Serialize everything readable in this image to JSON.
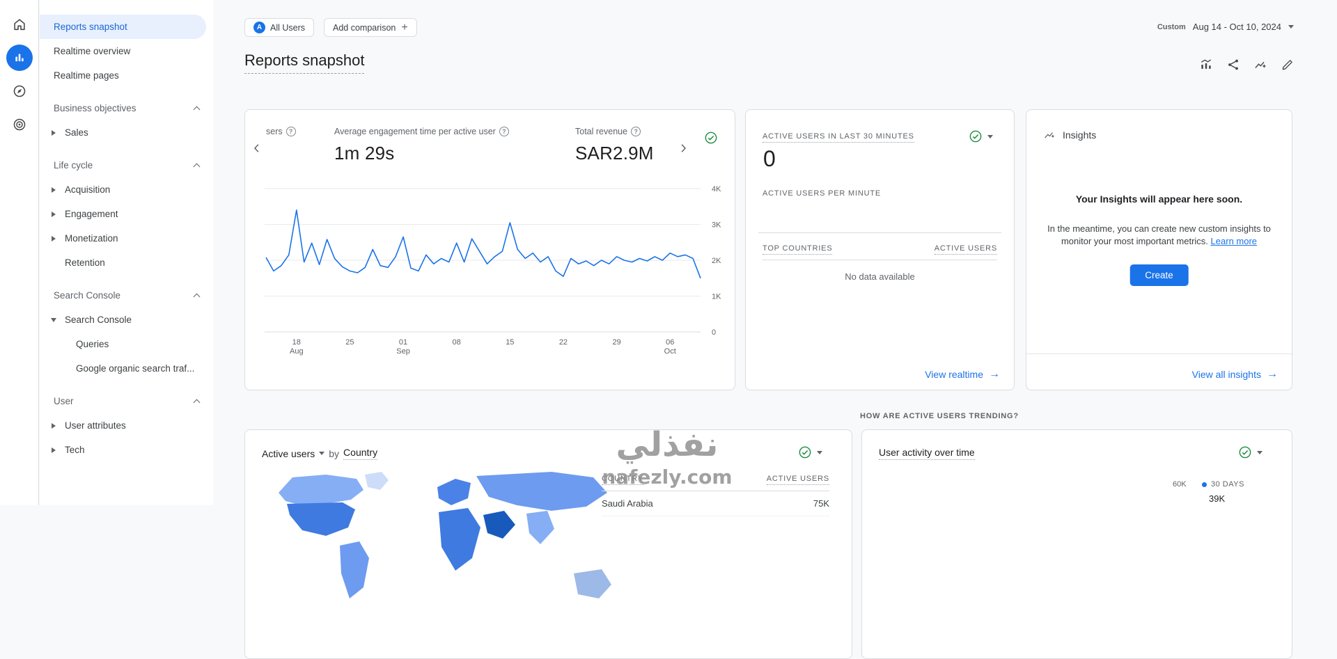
{
  "colors": {
    "accent_blue": "#1a73e8",
    "status_green": "#1e8e3e",
    "selected_nav_text": "#1967d2",
    "selected_nav_bg": "#e8f0fe",
    "chart_line": "#1a73e8"
  },
  "rail": {
    "items": [
      {
        "key": "home",
        "icon": "home-icon",
        "active": false
      },
      {
        "key": "reports",
        "icon": "reports-icon",
        "active": true
      },
      {
        "key": "explore",
        "icon": "explore-icon",
        "active": false
      },
      {
        "key": "advertising",
        "icon": "advertising-icon",
        "active": false
      }
    ]
  },
  "sidebar": {
    "top_items": [
      {
        "label": "Reports snapshot",
        "selected": true
      },
      {
        "label": "Realtime overview",
        "selected": false
      },
      {
        "label": "Realtime pages",
        "selected": false
      }
    ],
    "groups": [
      {
        "header": "Business objectives",
        "items": [
          {
            "label": "Sales",
            "arrow": "right"
          }
        ]
      },
      {
        "header": "Life cycle",
        "items": [
          {
            "label": "Acquisition",
            "arrow": "right"
          },
          {
            "label": "Engagement",
            "arrow": "right"
          },
          {
            "label": "Monetization",
            "arrow": "right"
          },
          {
            "label": "Retention",
            "arrow": "none"
          }
        ]
      },
      {
        "header": "Search Console",
        "items": [
          {
            "label": "Search Console",
            "arrow": "down"
          },
          {
            "label": "Queries",
            "arrow": "none",
            "indent": true
          },
          {
            "label": "Google organic search traf...",
            "arrow": "none",
            "indent": true
          }
        ]
      },
      {
        "header": "User",
        "items": [
          {
            "label": "User attributes",
            "arrow": "right"
          },
          {
            "label": "Tech",
            "arrow": "right"
          }
        ]
      }
    ]
  },
  "topbar": {
    "audience_initial": "A",
    "audience_chip": "All Users",
    "add_comparison_label": "Add comparison",
    "date_mode": "Custom",
    "date_range": "Aug 14 - Oct 10, 2024"
  },
  "header": {
    "title": "Reports snapshot"
  },
  "metrics_card": {
    "clipped_metric_label": "sers",
    "metric2_label": "Average engagement time per active user",
    "metric2_value": "1m 29s",
    "metric3_label": "Total revenue",
    "metric3_value": "SAR2.9M",
    "chart_data": {
      "type": "line",
      "x_start": "Aug 14",
      "x_end": "Oct 10",
      "y_max": 4000,
      "y_ticks": [
        "4K",
        "3K",
        "2K",
        "1K",
        "0"
      ],
      "x_ticks": [
        {
          "label": "18",
          "sub": "Aug",
          "day": 4
        },
        {
          "label": "25",
          "day": 11
        },
        {
          "label": "01",
          "sub": "Sep",
          "day": 18
        },
        {
          "label": "08",
          "day": 25
        },
        {
          "label": "15",
          "day": 32
        },
        {
          "label": "22",
          "day": 39
        },
        {
          "label": "29",
          "day": 46
        },
        {
          "label": "06",
          "sub": "Oct",
          "day": 53
        }
      ],
      "values": [
        2080,
        1700,
        1850,
        2150,
        3400,
        1950,
        2480,
        1880,
        2580,
        2050,
        1820,
        1700,
        1650,
        1800,
        2300,
        1850,
        1800,
        2100,
        2650,
        1780,
        1700,
        2150,
        1900,
        2050,
        1950,
        2480,
        1950,
        2600,
        2250,
        1900,
        2100,
        2250,
        3050,
        2300,
        2050,
        2200,
        1950,
        2100,
        1700,
        1550,
        2050,
        1900,
        1980,
        1850,
        2000,
        1900,
        2100,
        2000,
        1950,
        2050,
        1980,
        2100,
        2000,
        2200,
        2100,
        2150,
        2050,
        1500
      ]
    }
  },
  "realtime_card": {
    "title": "ACTIVE USERS IN LAST 30 MINUTES",
    "value": "0",
    "per_minute_label": "ACTIVE USERS PER MINUTE",
    "table_col1": "TOP COUNTRIES",
    "table_col2": "ACTIVE USERS",
    "empty_text": "No data available",
    "footer_link": "View realtime"
  },
  "insights_card": {
    "title": "Insights",
    "headline": "Your Insights will appear here soon.",
    "body": "In the meantime, you can create new custom insights to monitor your most important metrics.",
    "learn_more": "Learn more",
    "create_button": "Create",
    "footer_link": "View all insights"
  },
  "trend_question": "HOW ARE ACTIVE USERS TRENDING?",
  "geo_card": {
    "metric_label": "Active users",
    "by_label": "by",
    "dimension_label": "Country",
    "table_col1": "COUNTRY",
    "table_col2": "ACTIVE USERS",
    "rows": [
      {
        "country": "Saudi Arabia",
        "value": "75K"
      }
    ]
  },
  "activity_card": {
    "title": "User activity over time",
    "axis_label": "60K",
    "legend": [
      {
        "label": "30 DAYS",
        "value": "39K",
        "color": "#1a73e8"
      }
    ]
  },
  "watermark": {
    "line1": "نفذلي",
    "line2": "nafezly.com"
  }
}
